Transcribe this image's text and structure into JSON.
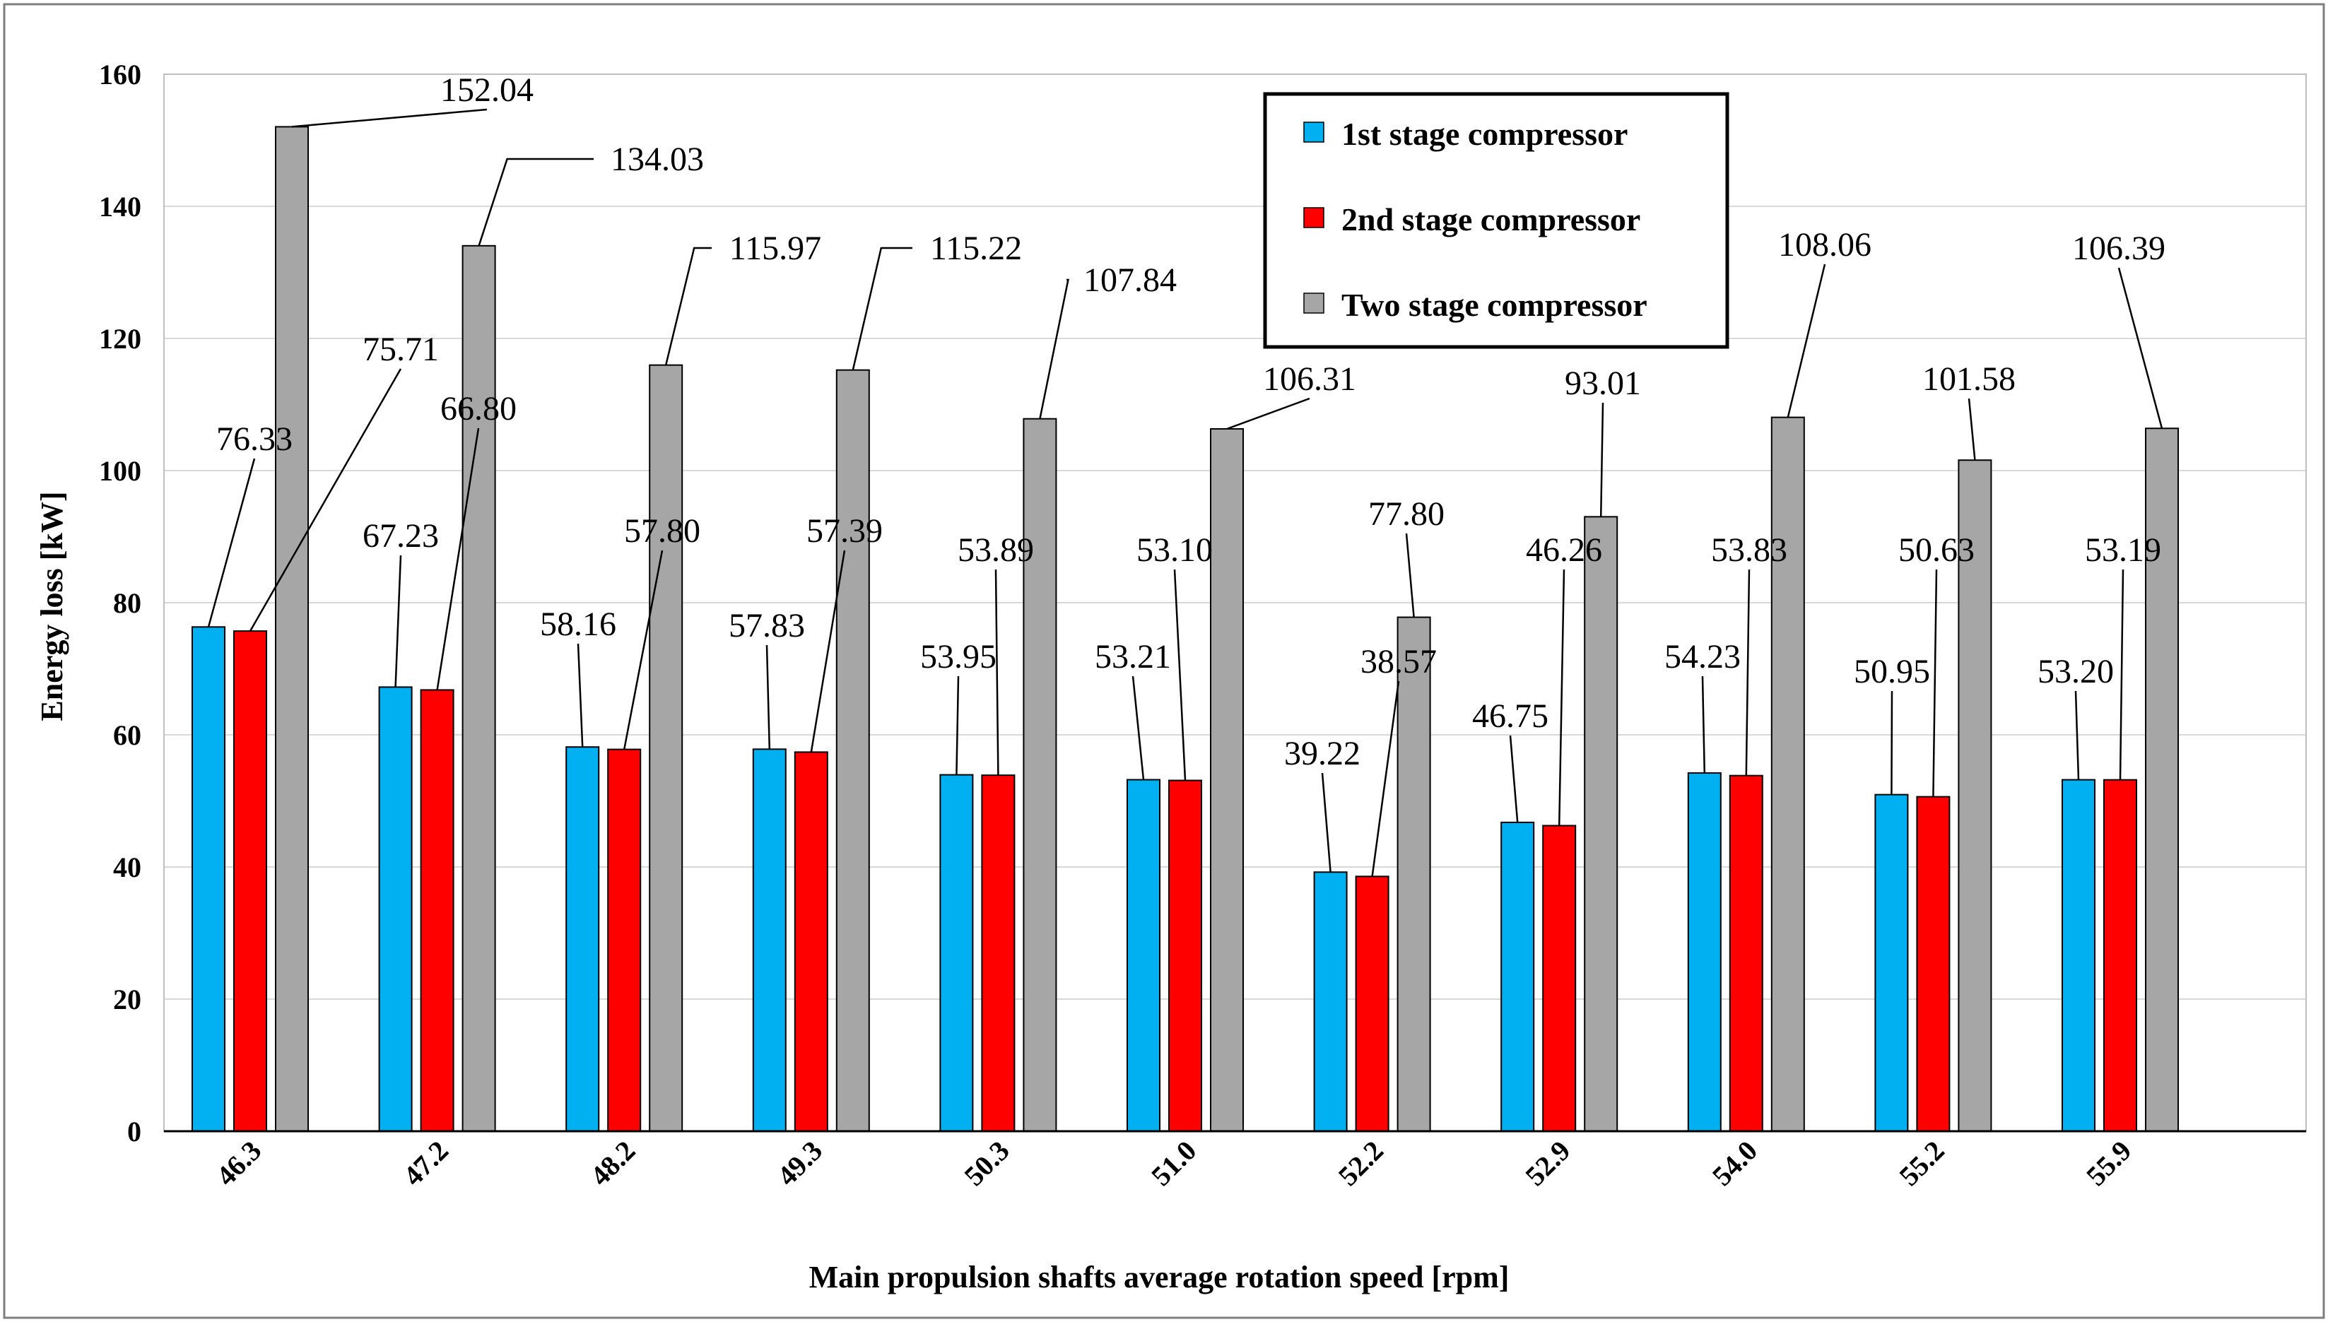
{
  "chart_data": {
    "type": "bar",
    "title": "",
    "xlabel": "Main propulsion shafts average rotation speed [rpm]",
    "ylabel": "Energy loss [kW]",
    "ylim": [
      0,
      160
    ],
    "yticks": [
      0,
      20,
      40,
      60,
      80,
      100,
      120,
      140,
      160
    ],
    "grid": true,
    "legend_position": "top-right",
    "categories": [
      "46.3",
      "47.2",
      "48.2",
      "49.3",
      "50.3",
      "51.0",
      "52.2",
      "52.9",
      "54.0",
      "55.2",
      "55.9"
    ],
    "series": [
      {
        "name": "1st stage compressor",
        "color": "#00b0f0",
        "values": [
          76.33,
          67.23,
          58.16,
          57.83,
          53.95,
          53.21,
          39.22,
          46.75,
          54.23,
          50.95,
          53.2
        ],
        "labels": [
          "76.33",
          "67.23",
          "58.16",
          "57.83",
          "53.95",
          "53.21",
          "39.22",
          "46.75",
          "54.23",
          "50.95",
          "53.20"
        ]
      },
      {
        "name": "2nd stage compressor",
        "color": "#ff0000",
        "values": [
          75.71,
          66.8,
          57.8,
          57.39,
          53.89,
          53.1,
          38.57,
          46.26,
          53.83,
          50.63,
          53.19
        ],
        "labels": [
          "75.71",
          "66.80",
          "57.80",
          "57.39",
          "53.89",
          "53.10",
          "38.57",
          "46.26",
          "53.83",
          "50.63",
          "53.19"
        ]
      },
      {
        "name": "Two stage compressor",
        "color": "#a6a6a6",
        "values": [
          152.04,
          134.03,
          115.97,
          115.22,
          107.84,
          106.31,
          77.8,
          93.01,
          108.06,
          101.58,
          106.39
        ],
        "labels": [
          "152.04",
          "134.03",
          "115.97",
          "115.22",
          "107.84",
          "106.31",
          "77.80",
          "93.01",
          "108.06",
          "101.58",
          "106.39"
        ]
      }
    ]
  }
}
